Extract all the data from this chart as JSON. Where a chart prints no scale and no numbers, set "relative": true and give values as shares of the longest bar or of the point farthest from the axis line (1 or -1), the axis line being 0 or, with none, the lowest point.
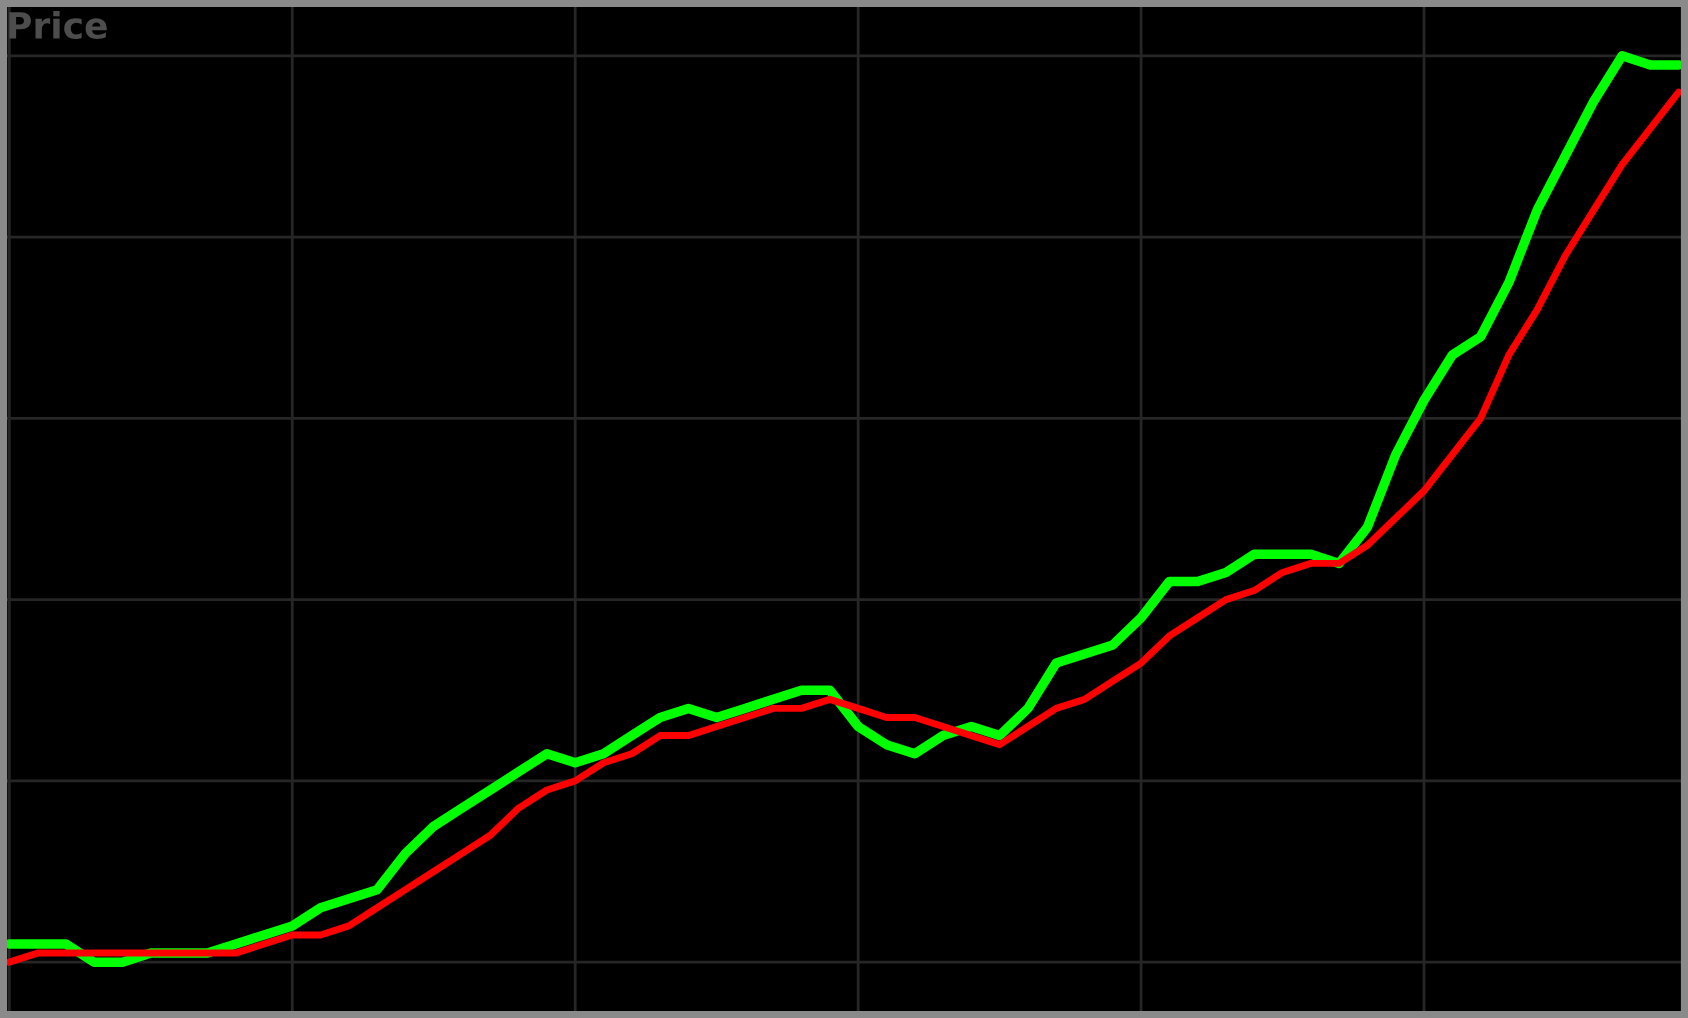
{
  "chart_data": {
    "type": "line",
    "relative": true,
    "ylabel": "Price",
    "grid": true,
    "categories": [
      null,
      null,
      null,
      null,
      null,
      null,
      null,
      null,
      null,
      null,
      null,
      null,
      null,
      null,
      null,
      null,
      null,
      null,
      null,
      null,
      null,
      null,
      null,
      null,
      null,
      null,
      null,
      null,
      null,
      null,
      null,
      null,
      null,
      null,
      null,
      null,
      null,
      null,
      null,
      null,
      null,
      null,
      null,
      null,
      null,
      null,
      null,
      null,
      null,
      null,
      null,
      null,
      null,
      null,
      null,
      null,
      null,
      null,
      null,
      null
    ],
    "series": [
      {
        "color": "#00ff00",
        "values": [
          0.02,
          0.02,
          0.02,
          0,
          0,
          0.01,
          0.01,
          0.01,
          0.02,
          0.03,
          0.04,
          0.06,
          0.07,
          0.08,
          0.12,
          0.15,
          0.17,
          0.19,
          0.21,
          0.23,
          0.22,
          0.23,
          0.25,
          0.27,
          0.28,
          0.27,
          0.28,
          0.29,
          0.3,
          0.3,
          0.26,
          0.24,
          0.23,
          0.25,
          0.26,
          0.25,
          0.28,
          0.33,
          0.34,
          0.35,
          0.38,
          0.42,
          0.42,
          0.43,
          0.45,
          0.45,
          0.45,
          0.44,
          0.48,
          0.56,
          0.62,
          0.67,
          0.69,
          0.75,
          0.83,
          0.89,
          0.95,
          1,
          0.99,
          0.99
        ]
      },
      {
        "color": "#ff0000",
        "values": [
          0.0,
          0.01,
          0.01,
          0.01,
          0.01,
          0.01,
          0.01,
          0.01,
          0.01,
          0.02,
          0.03,
          0.03,
          0.04,
          0.06,
          0.08,
          0.1,
          0.12,
          0.14,
          0.17,
          0.19,
          0.2,
          0.22,
          0.23,
          0.25,
          0.25,
          0.26,
          0.27,
          0.28,
          0.28,
          0.29,
          0.28,
          0.27,
          0.27,
          0.26,
          0.25,
          0.24,
          0.26,
          0.28,
          0.29,
          0.31,
          0.33,
          0.36,
          0.38,
          0.4,
          0.41,
          0.43,
          0.44,
          0.44,
          0.46,
          0.49,
          0.52,
          0.56,
          0.6,
          0.67,
          0.72,
          0.78,
          0.83,
          0.88,
          0.92,
          0.96
        ]
      }
    ]
  }
}
